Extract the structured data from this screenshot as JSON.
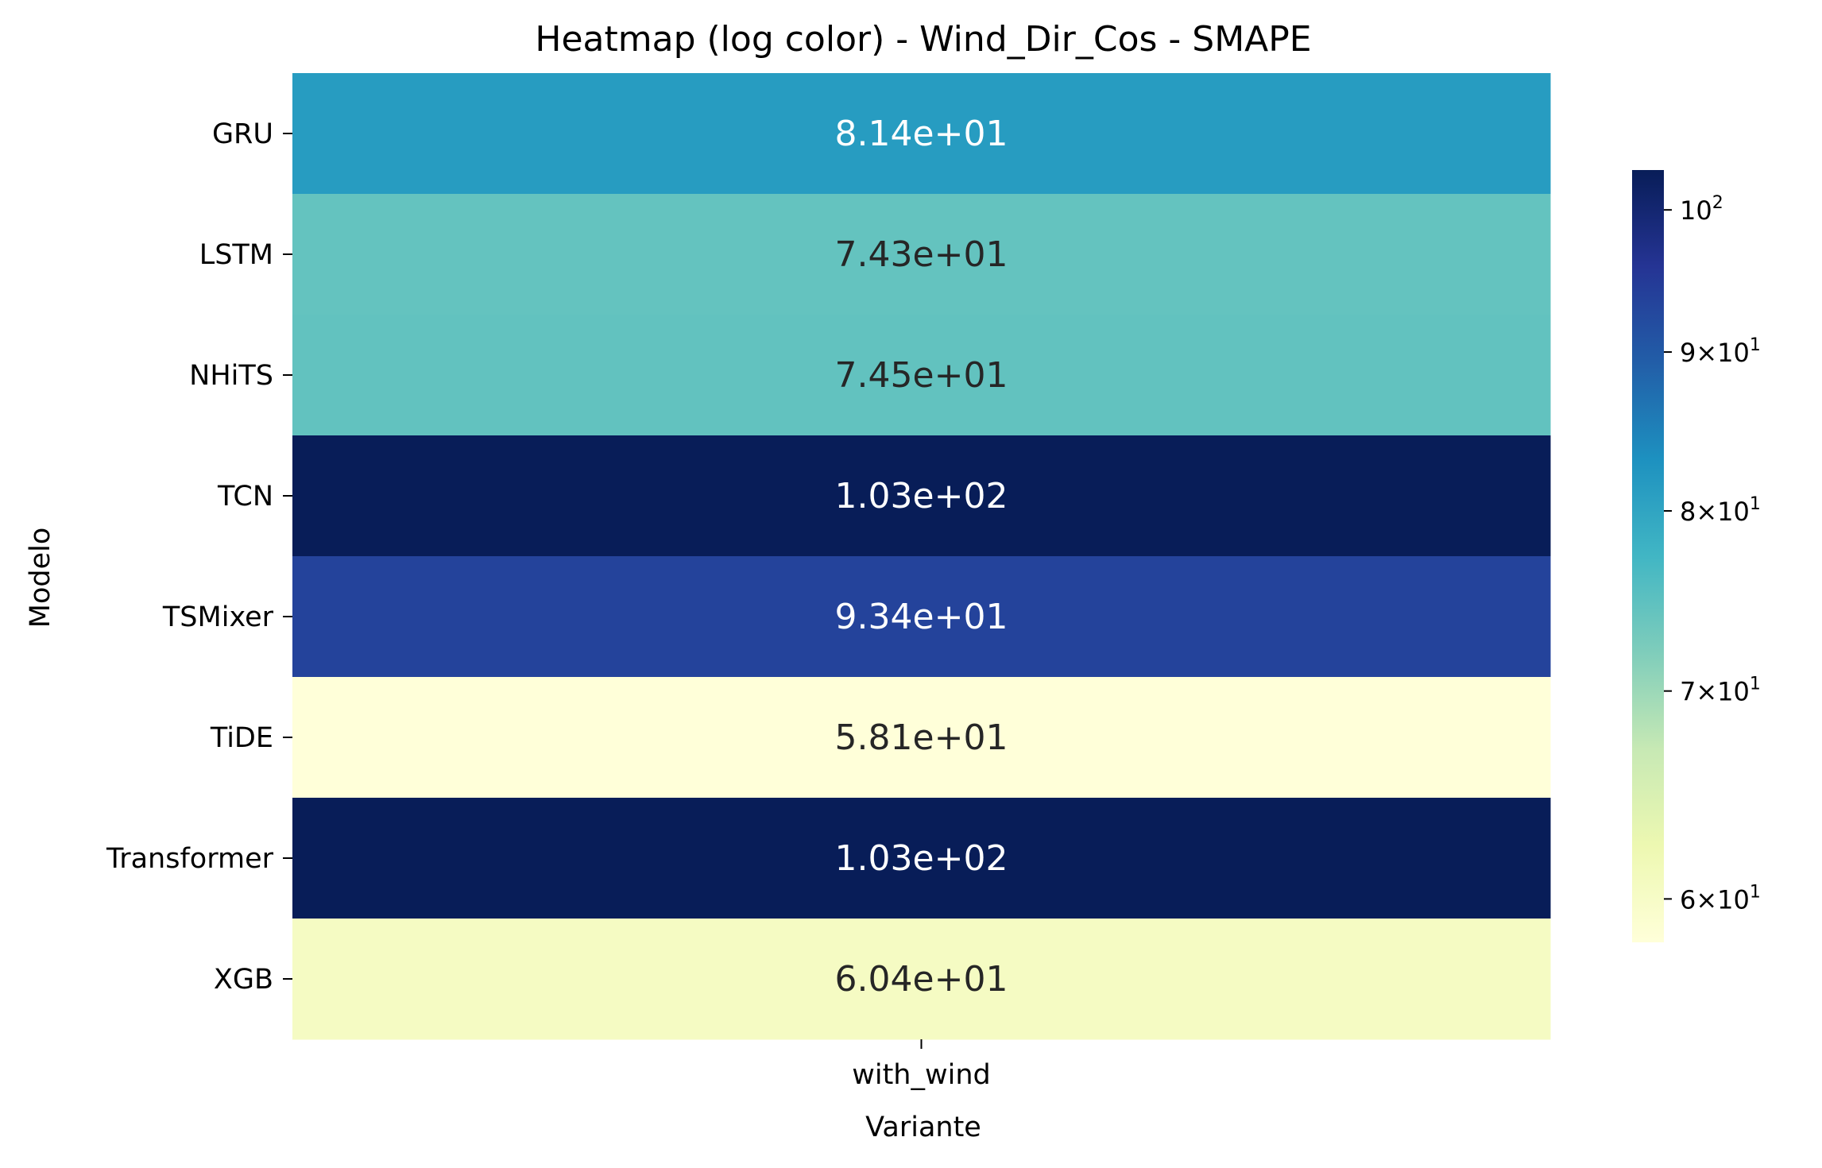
{
  "chart_data": {
    "type": "heatmap",
    "title": "Heatmap (log color) - Wind_Dir_Cos - SMAPE",
    "xlabel": "Variante",
    "ylabel": "Modelo",
    "x_categories": [
      "with_wind"
    ],
    "y_categories": [
      "GRU",
      "LSTM",
      "NHiTS",
      "TCN",
      "TSMixer",
      "TiDE",
      "Transformer",
      "XGB"
    ],
    "values": [
      [
        81.4
      ],
      [
        74.3
      ],
      [
        74.5
      ],
      [
        103.0
      ],
      [
        93.4
      ],
      [
        58.1
      ],
      [
        103.0
      ],
      [
        60.4
      ]
    ],
    "cell_labels": [
      [
        "8.14e+01"
      ],
      [
        "7.43e+01"
      ],
      [
        "7.45e+01"
      ],
      [
        "1.03e+02"
      ],
      [
        "9.34e+01"
      ],
      [
        "5.81e+01"
      ],
      [
        "1.03e+02"
      ],
      [
        "6.04e+01"
      ]
    ],
    "color_scale": "log",
    "colormap": "YlGnBu",
    "colormap_stops": [
      "#ffffd9",
      "#edf8b1",
      "#c7e9b4",
      "#7fcdbb",
      "#41b6c4",
      "#1d91c0",
      "#225ea8",
      "#253494",
      "#081d58"
    ],
    "vmin": 58.1,
    "vmax": 103.0,
    "colorbar": {
      "ticks": [
        {
          "value": 60,
          "base": "6",
          "sym": "×",
          "mant": "10",
          "exp": "1"
        },
        {
          "value": 70,
          "base": "7",
          "sym": "×",
          "mant": "10",
          "exp": "1"
        },
        {
          "value": 80,
          "base": "8",
          "sym": "×",
          "mant": "10",
          "exp": "1"
        },
        {
          "value": 90,
          "base": "9",
          "sym": "×",
          "mant": "10",
          "exp": "1"
        },
        {
          "value": 100,
          "base": "",
          "sym": "",
          "mant": "10",
          "exp": "2"
        }
      ]
    }
  }
}
